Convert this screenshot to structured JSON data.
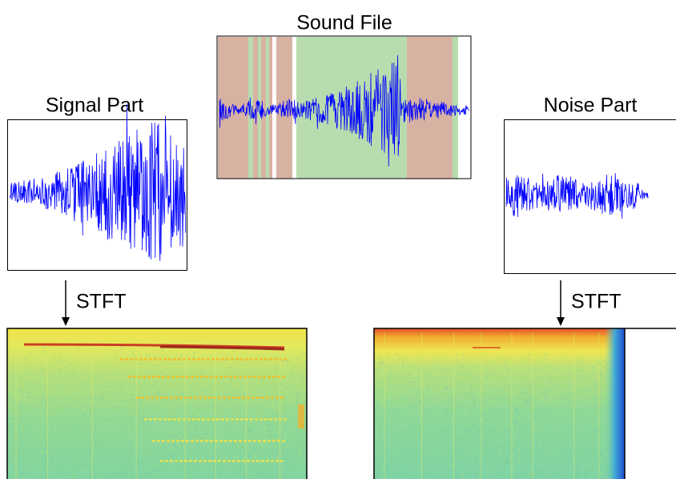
{
  "sound_file": {
    "title": "Sound File"
  },
  "signal_part": {
    "label": "Signal Part",
    "transform": "STFT"
  },
  "noise_part": {
    "label": "Noise Part",
    "transform": "STFT"
  }
}
